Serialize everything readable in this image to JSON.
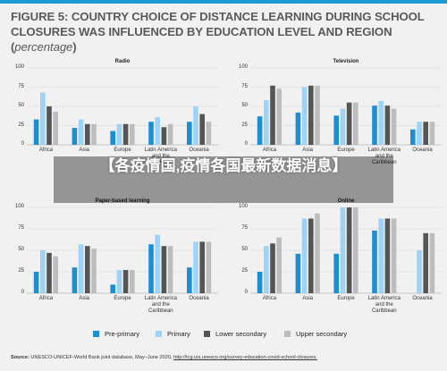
{
  "header": {
    "title_main": "FIGURE 5: COUNTRY CHOICE OF DISTANCE LEARNING DURING SCHOOL CLOSURES WAS INFLUENCED BY EDUCATION LEVEL AND REGION (",
    "title_unit": "percentage",
    "title_close": ")"
  },
  "overlay": {
    "text": "【各疫情国,疫情各国最新数据消息】"
  },
  "legend": {
    "items": [
      {
        "label": "Pre-primary",
        "color": "#1b8fd2"
      },
      {
        "label": "Primary",
        "color": "#9fd3f5"
      },
      {
        "label": "Lower secondary",
        "color": "#555555"
      },
      {
        "label": "Upper secondary",
        "color": "#bdbdbd"
      }
    ]
  },
  "source": {
    "label": "Source:",
    "text": "UNESCO-UNICEF-World Bank joint database, May–June 2020,",
    "url": "http://tcg.uis.unesco.org/survey-education-covid-school-closures."
  },
  "chart_data": [
    {
      "type": "bar",
      "title": "Radio",
      "categories": [
        "Africa",
        "Asia",
        "Europe",
        "Latin America and the Caribbean",
        "Oceania"
      ],
      "ylim": [
        0,
        100
      ],
      "yticks": [
        0,
        25,
        50,
        75,
        100
      ],
      "series": [
        {
          "name": "Pre-primary",
          "values": [
            33,
            22,
            18,
            30,
            30
          ]
        },
        {
          "name": "Primary",
          "values": [
            68,
            33,
            27,
            36,
            50
          ]
        },
        {
          "name": "Lower secondary",
          "values": [
            50,
            27,
            27,
            23,
            40
          ]
        },
        {
          "name": "Upper secondary",
          "values": [
            43,
            27,
            27,
            27,
            30
          ]
        }
      ]
    },
    {
      "type": "bar",
      "title": "Television",
      "categories": [
        "Africa",
        "Asia",
        "Europe",
        "Latin America and the Caribbean",
        "Oceania"
      ],
      "ylim": [
        0,
        100
      ],
      "yticks": [
        0,
        25,
        50,
        75,
        100
      ],
      "series": [
        {
          "name": "Pre-primary",
          "values": [
            37,
            42,
            38,
            51,
            20
          ]
        },
        {
          "name": "Primary",
          "values": [
            58,
            75,
            47,
            57,
            30
          ]
        },
        {
          "name": "Lower secondary",
          "values": [
            77,
            77,
            55,
            51,
            30
          ]
        },
        {
          "name": "Upper secondary",
          "values": [
            73,
            77,
            55,
            47,
            30
          ]
        }
      ]
    },
    {
      "type": "bar",
      "title": "Paper-based learning",
      "categories": [
        "Africa",
        "Asia",
        "Europe",
        "Latin America and the Caribbean",
        "Oceania"
      ],
      "ylim": [
        0,
        100
      ],
      "yticks": [
        0,
        25,
        50,
        75,
        100
      ],
      "series": [
        {
          "name": "Pre-primary",
          "values": [
            25,
            30,
            10,
            57,
            30
          ]
        },
        {
          "name": "Primary",
          "values": [
            50,
            57,
            27,
            68,
            60
          ]
        },
        {
          "name": "Lower secondary",
          "values": [
            47,
            55,
            27,
            55,
            60
          ]
        },
        {
          "name": "Upper secondary",
          "values": [
            43,
            52,
            27,
            55,
            60
          ]
        }
      ]
    },
    {
      "type": "bar",
      "title": "Online",
      "categories": [
        "Africa",
        "Asia",
        "Europe",
        "Latin America and the Caribbean",
        "Oceania"
      ],
      "ylim": [
        0,
        100
      ],
      "yticks": [
        0,
        25,
        50,
        75,
        100
      ],
      "series": [
        {
          "name": "Pre-primary",
          "values": [
            25,
            46,
            46,
            73,
            0
          ]
        },
        {
          "name": "Primary",
          "values": [
            55,
            87,
            100,
            87,
            50
          ]
        },
        {
          "name": "Lower secondary",
          "values": [
            58,
            87,
            100,
            87,
            70
          ]
        },
        {
          "name": "Upper secondary",
          "values": [
            65,
            93,
            100,
            87,
            70
          ]
        }
      ]
    }
  ]
}
